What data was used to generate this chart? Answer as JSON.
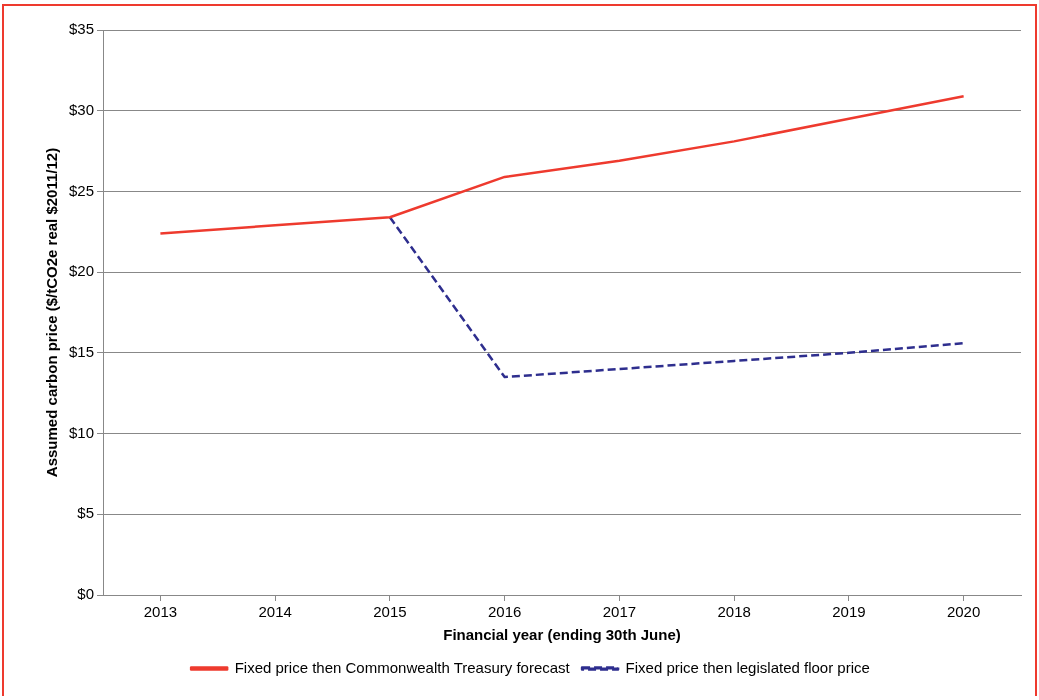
{
  "chart_data": {
    "type": "line",
    "xlabel": "Financial year (ending 30th June)",
    "ylabel": "Assumed carbon price ($/tCO2e real $2011/12)",
    "categories": [
      "2013",
      "2014",
      "2015",
      "2016",
      "2017",
      "2018",
      "2019",
      "2020"
    ],
    "series": [
      {
        "name": "Fixed price then Commonwealth Treasury forecast",
        "color": "#ee3a2e",
        "line_style": "solid",
        "values": [
          22.4,
          22.9,
          23.4,
          25.9,
          26.9,
          28.1,
          29.5,
          30.9
        ]
      },
      {
        "name": "Fixed price then legislated floor price",
        "color": "#2e2e8e",
        "line_style": "dashed",
        "values": [
          null,
          null,
          23.4,
          13.5,
          14.0,
          14.5,
          15.0,
          15.6
        ]
      }
    ],
    "ylim": [
      0,
      35
    ],
    "yticks": [
      {
        "value": 0,
        "label": "$0"
      },
      {
        "value": 5,
        "label": "$5"
      },
      {
        "value": 10,
        "label": "$10"
      },
      {
        "value": 15,
        "label": "$15"
      },
      {
        "value": 20,
        "label": "$20"
      },
      {
        "value": 25,
        "label": "$25"
      },
      {
        "value": 30,
        "label": "$30"
      },
      {
        "value": 35,
        "label": "$35"
      }
    ],
    "grid": "y",
    "legend": "bottom",
    "marker": "none"
  }
}
